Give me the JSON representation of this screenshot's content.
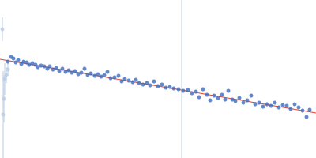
{
  "chart_data": {
    "type": "scatter",
    "xlim": [
      0,
      400
    ],
    "ylim": [
      0,
      200
    ],
    "xticks": [
      0,
      400
    ],
    "yticks": [
      0,
      200
    ],
    "grid": false,
    "tick_labels": false,
    "series": [
      {
        "type": "line",
        "color": "#c9d7ea",
        "line_style": "solid",
        "x": [
          230,
          230
        ],
        "values": [
          0,
          200
        ]
      },
      {
        "type": "scatter",
        "color": "#b9cde6",
        "marker": "circle",
        "x": [
          3,
          4,
          5,
          6,
          8,
          10
        ],
        "values": [
          163,
          55,
          75,
          100,
          105,
          112
        ],
        "errors": [
          15,
          55,
          30,
          20,
          10,
          8
        ]
      },
      {
        "type": "scatter",
        "color": "#3b6bbf",
        "marker": "circle",
        "x": [
          10,
          14,
          17,
          20,
          23,
          27,
          30,
          34,
          37,
          41,
          45,
          48,
          52,
          56,
          60,
          63,
          67,
          71,
          75,
          79,
          83,
          87,
          91,
          95,
          99,
          103,
          107,
          111,
          115,
          120,
          124,
          128,
          132,
          136,
          140,
          145,
          150,
          154,
          158,
          163,
          168,
          172,
          176,
          181,
          186,
          190,
          195,
          200,
          205,
          210,
          215,
          220,
          226,
          232,
          238,
          243,
          248,
          252,
          257,
          262,
          266,
          271,
          276,
          281,
          285,
          289,
          294,
          298,
          303,
          308,
          313,
          318,
          323,
          328,
          333,
          338,
          343,
          348,
          353,
          358,
          363,
          368,
          373,
          378,
          383,
          388,
          392
        ],
        "values": [
          122,
          128,
          126,
          121,
          124,
          119,
          122,
          121,
          118,
          120,
          118,
          115,
          117,
          116,
          113,
          116,
          112,
          114,
          110,
          113,
          109,
          111,
          108,
          110,
          106,
          108,
          113,
          105,
          107,
          104,
          106,
          103,
          105,
          109,
          101,
          102,
          104,
          97,
          100,
          98,
          96,
          99,
          95,
          93,
          95,
          92,
          97,
          91,
          93,
          89,
          90,
          88,
          87,
          85,
          86,
          82,
          84,
          77,
          87,
          80,
          73,
          79,
          76,
          80,
          74,
          85,
          74,
          72,
          76,
          70,
          73,
          79,
          68,
          70,
          65,
          68,
          66,
          70,
          64,
          67,
          66,
          62,
          68,
          64,
          60,
          52,
          61
        ]
      },
      {
        "type": "line",
        "color": "#e2432f",
        "line_style": "solid",
        "x": [
          0,
          400
        ],
        "values": [
          125,
          57
        ]
      }
    ]
  }
}
